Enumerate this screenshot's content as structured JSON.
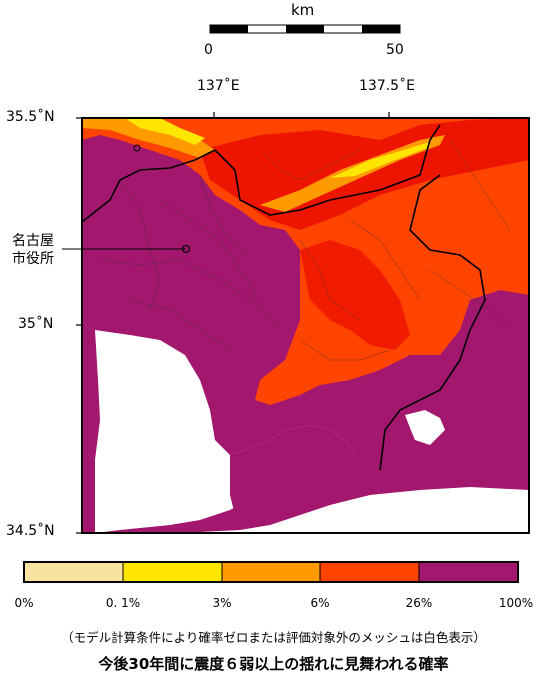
{
  "scale_bar": {
    "unit": "km",
    "left_label": "0",
    "right_label": "50"
  },
  "axes": {
    "x_ticks": [
      "137˚E",
      "137.5˚E"
    ],
    "y_ticks": [
      "35.5˚N",
      "35˚N",
      "34.5˚N"
    ]
  },
  "map_label": {
    "line1": "名古屋",
    "line2": "市役所"
  },
  "legend": {
    "ticks": [
      "0%",
      "0. 1%",
      "3%",
      "6%",
      "26%",
      "100%"
    ],
    "colors": [
      "#fae3a0",
      "#ffe600",
      "#ff9a00",
      "#ff4400",
      "#ee1500",
      "#a3176e"
    ]
  },
  "note": "（モデル計算条件により確率ゼロまたは評価対象外のメッシュは白色表示）",
  "title": "今後30年間に震度６弱以上の揺れに見舞われる確率"
}
